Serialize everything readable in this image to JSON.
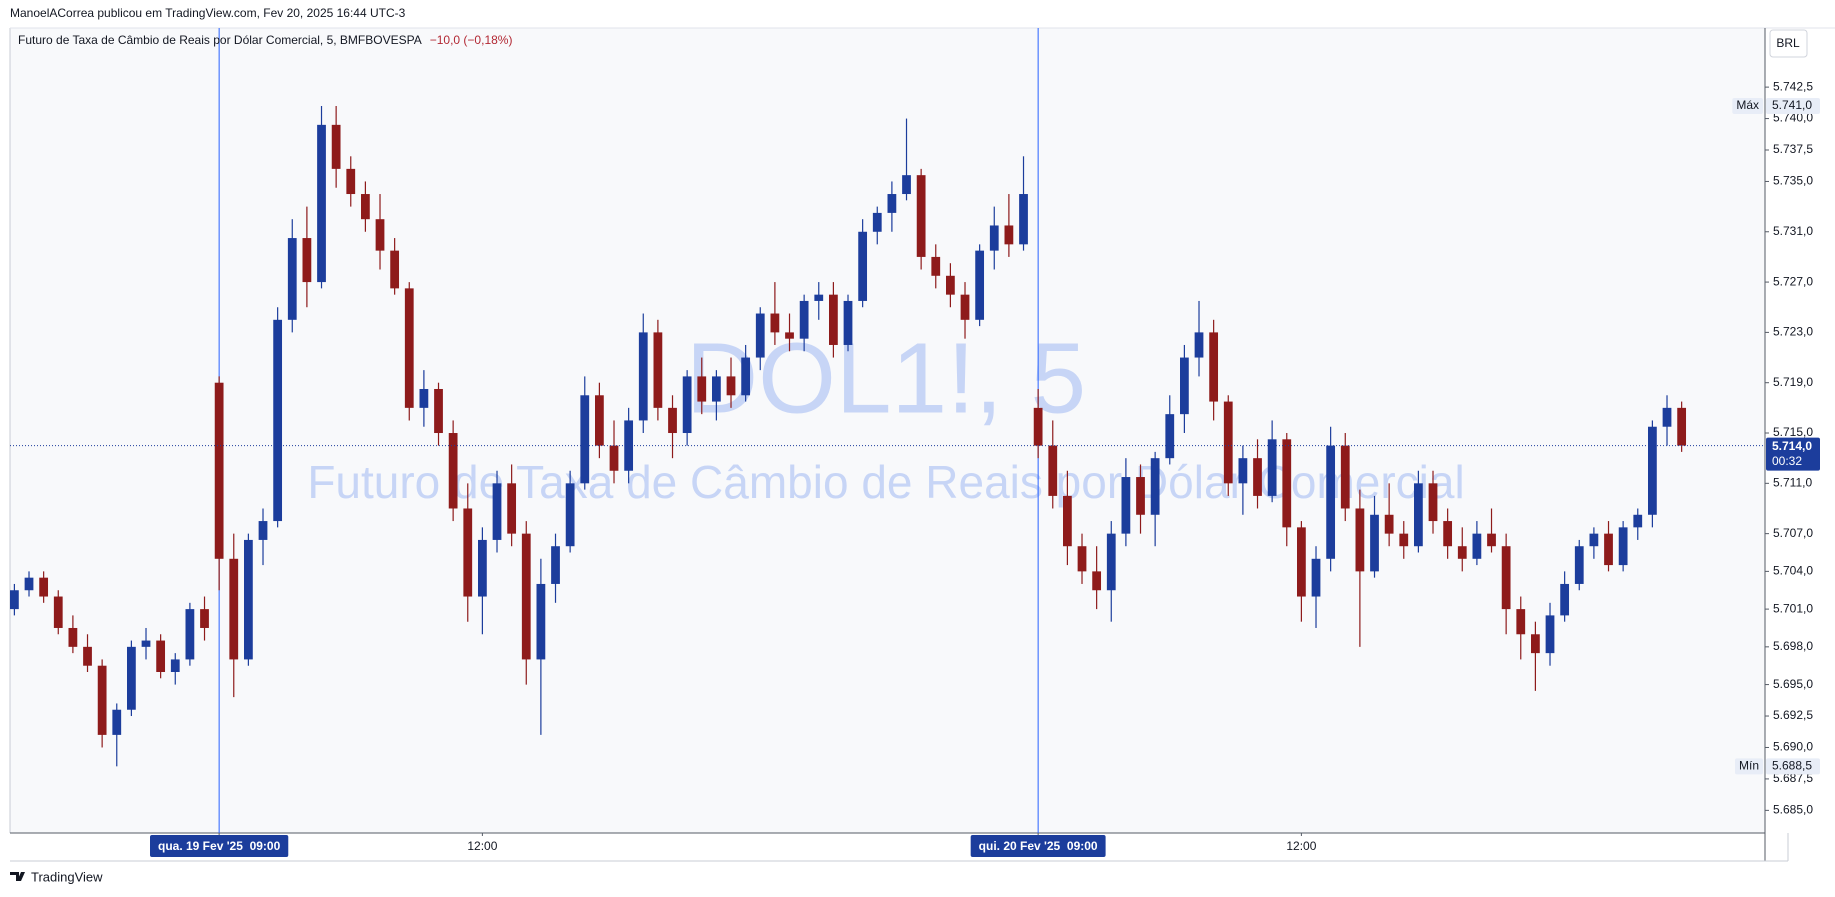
{
  "header": {
    "published": "ManoelACorrea publicou em TradingView.com, Fev 20, 2025 16:44 UTC-3"
  },
  "legend": {
    "name": "Futuro de Taxa de Câmbio de Reais por Dólar Comercial, 5, BMFBOVESPA",
    "change": "−10,0 (−0,18%)"
  },
  "watermark": {
    "symbol": "DOL1!, 5",
    "name": "Futuro de Taxa de Câmbio de Reais por Dólar Comercial"
  },
  "currency": "BRL",
  "footer": {
    "brand": "TradingView"
  },
  "chart_data": {
    "type": "candlestick",
    "up_color": "#1c3d9c",
    "down_color": "#8e1b1b",
    "grid": false,
    "ylim": [
      5683.2,
      5747.2
    ],
    "yticks": [
      {
        "value": 5742.5,
        "label": "5.742,5"
      },
      {
        "value": 5740,
        "label": "5.740,0"
      },
      {
        "value": 5737.5,
        "label": "5.737,5"
      },
      {
        "value": 5735,
        "label": "5.735,0"
      },
      {
        "value": 5731,
        "label": "5.731,0"
      },
      {
        "value": 5727,
        "label": "5.727,0"
      },
      {
        "value": 5723,
        "label": "5.723,0"
      },
      {
        "value": 5719,
        "label": "5.719,0"
      },
      {
        "value": 5715,
        "label": "5.715,0"
      },
      {
        "value": 5711,
        "label": "5.711,0"
      },
      {
        "value": 5707,
        "label": "5.707,0"
      },
      {
        "value": 5704,
        "label": "5.704,0"
      },
      {
        "value": 5701,
        "label": "5.701,0"
      },
      {
        "value": 5698,
        "label": "5.698,0"
      },
      {
        "value": 5695,
        "label": "5.695,0"
      },
      {
        "value": 5692.5,
        "label": "5.692,5"
      },
      {
        "value": 5690,
        "label": "5.690,0"
      },
      {
        "value": 5687.5,
        "label": "5.687,5"
      },
      {
        "value": 5685,
        "label": "5.685,0"
      }
    ],
    "xlim": [
      -0.3,
      119.7
    ],
    "xticks": [
      {
        "value": 14,
        "label": "qua. 19 Fev '25  09:00"
      },
      {
        "value": 32,
        "label": "12:00"
      },
      {
        "value": 70,
        "label": "qui. 20 Fev '25  09:00"
      },
      {
        "value": 88,
        "label": "12:00"
      }
    ],
    "session_breaks": [
      14,
      70
    ],
    "last": {
      "value": 5714,
      "label": "5.714,0"
    },
    "countdown": "00:32",
    "max": {
      "value": 5741,
      "label": "5.741,0"
    },
    "max_label": "Máx",
    "min": {
      "value": 5688.5,
      "label": "5.688,5"
    },
    "min_label": "Mín",
    "candles": [
      [
        5701,
        5703,
        5700.5,
        5702.5
      ],
      [
        5702.5,
        5704,
        5702,
        5703.5
      ],
      [
        5703.5,
        5704,
        5701.5,
        5702
      ],
      [
        5702,
        5702.5,
        5699,
        5699.5
      ],
      [
        5699.5,
        5700.5,
        5697.5,
        5698
      ],
      [
        5698,
        5699,
        5696,
        5696.5
      ],
      [
        5696.5,
        5697,
        5690,
        5691
      ],
      [
        5691,
        5693.5,
        5688.5,
        5693
      ],
      [
        5693,
        5698.5,
        5692.5,
        5698
      ],
      [
        5698,
        5699.5,
        5697,
        5698.5
      ],
      [
        5698.5,
        5699,
        5695.5,
        5696
      ],
      [
        5696,
        5697.5,
        5695,
        5697
      ],
      [
        5697,
        5701.5,
        5696.5,
        5701
      ],
      [
        5701,
        5702,
        5698.5,
        5699.5
      ],
      [
        5719,
        5719.5,
        5702.5,
        5705
      ],
      [
        5705,
        5707,
        5694,
        5697
      ],
      [
        5697,
        5707,
        5696.5,
        5706.5
      ],
      [
        5706.5,
        5709,
        5704.5,
        5708
      ],
      [
        5708,
        5725,
        5707.5,
        5724
      ],
      [
        5724,
        5732,
        5723,
        5730.5
      ],
      [
        5730.5,
        5733,
        5725,
        5727
      ],
      [
        5727,
        5741,
        5726.5,
        5739.5
      ],
      [
        5739.5,
        5741,
        5734.5,
        5736
      ],
      [
        5736,
        5737,
        5733,
        5734
      ],
      [
        5734,
        5735,
        5731,
        5732
      ],
      [
        5732,
        5734,
        5728,
        5729.5
      ],
      [
        5729.5,
        5730.5,
        5726,
        5726.5
      ],
      [
        5726.5,
        5727,
        5716,
        5717
      ],
      [
        5717,
        5720,
        5715.5,
        5718.5
      ],
      [
        5718.5,
        5719,
        5714,
        5715
      ],
      [
        5715,
        5716,
        5708,
        5709
      ],
      [
        5709,
        5711,
        5700,
        5702
      ],
      [
        5702,
        5707.5,
        5699,
        5706.5
      ],
      [
        5706.5,
        5712,
        5705.5,
        5711
      ],
      [
        5711,
        5712.5,
        5706,
        5707
      ],
      [
        5707,
        5708,
        5695,
        5697
      ],
      [
        5697,
        5705,
        5691,
        5703
      ],
      [
        5703,
        5707,
        5701.5,
        5706
      ],
      [
        5706,
        5712,
        5705.5,
        5711
      ],
      [
        5711,
        5719.5,
        5710.5,
        5718
      ],
      [
        5718,
        5719,
        5713,
        5714
      ],
      [
        5714,
        5716,
        5711,
        5712
      ],
      [
        5712,
        5717,
        5711,
        5716
      ],
      [
        5716,
        5724.5,
        5715,
        5723
      ],
      [
        5723,
        5724,
        5716,
        5717
      ],
      [
        5717,
        5718,
        5713,
        5715
      ],
      [
        5715,
        5720,
        5714,
        5719.5
      ],
      [
        5719.5,
        5721,
        5716.5,
        5717.5
      ],
      [
        5717.5,
        5720,
        5716,
        5719.5
      ],
      [
        5719.5,
        5721,
        5717,
        5718
      ],
      [
        5718,
        5722,
        5717.5,
        5721
      ],
      [
        5721,
        5725,
        5720,
        5724.5
      ],
      [
        5724.5,
        5727,
        5722,
        5723
      ],
      [
        5723,
        5724.5,
        5721.5,
        5722.5
      ],
      [
        5722.5,
        5726,
        5721.5,
        5725.5
      ],
      [
        5725.5,
        5727,
        5724,
        5726
      ],
      [
        5726,
        5727,
        5721,
        5722
      ],
      [
        5722,
        5726,
        5721.5,
        5725.5
      ],
      [
        5725.5,
        5732,
        5725,
        5731
      ],
      [
        5731,
        5733,
        5730,
        5732.5
      ],
      [
        5732.5,
        5735,
        5731,
        5734
      ],
      [
        5734,
        5740,
        5733.5,
        5735.5
      ],
      [
        5735.5,
        5736,
        5728,
        5729
      ],
      [
        5729,
        5730,
        5726.5,
        5727.5
      ],
      [
        5727.5,
        5728.5,
        5725,
        5726
      ],
      [
        5726,
        5727,
        5722.5,
        5724
      ],
      [
        5724,
        5730,
        5723.5,
        5729.5
      ],
      [
        5729.5,
        5733,
        5728,
        5731.5
      ],
      [
        5731.5,
        5734,
        5729,
        5730
      ],
      [
        5730,
        5737,
        5729.5,
        5734
      ],
      [
        5717,
        5718.5,
        5713,
        5714
      ],
      [
        5714,
        5716,
        5709,
        5710
      ],
      [
        5710,
        5712,
        5704.5,
        5706
      ],
      [
        5706,
        5707,
        5703,
        5704
      ],
      [
        5704,
        5706,
        5701,
        5702.5
      ],
      [
        5702.5,
        5708,
        5700,
        5707
      ],
      [
        5707,
        5713,
        5706,
        5711.5
      ],
      [
        5711.5,
        5712.5,
        5707,
        5708.5
      ],
      [
        5708.5,
        5713.5,
        5706,
        5713
      ],
      [
        5713,
        5718,
        5712.5,
        5716.5
      ],
      [
        5716.5,
        5722,
        5715,
        5721
      ],
      [
        5721,
        5725.5,
        5719.5,
        5723
      ],
      [
        5723,
        5724,
        5716,
        5717.5
      ],
      [
        5717.5,
        5718,
        5710,
        5711
      ],
      [
        5711,
        5714,
        5708.5,
        5713
      ],
      [
        5713,
        5714.5,
        5709,
        5710
      ],
      [
        5710,
        5716,
        5709.5,
        5714.5
      ],
      [
        5714.5,
        5715,
        5706,
        5707.5
      ],
      [
        5707.5,
        5708,
        5700,
        5702
      ],
      [
        5702,
        5706,
        5699.5,
        5705
      ],
      [
        5705,
        5715.5,
        5704,
        5714
      ],
      [
        5714,
        5715,
        5708,
        5709
      ],
      [
        5709,
        5710.5,
        5698,
        5704
      ],
      [
        5704,
        5710,
        5703.5,
        5708.5
      ],
      [
        5708.5,
        5711,
        5706,
        5707
      ],
      [
        5707,
        5708,
        5705,
        5706
      ],
      [
        5706,
        5712,
        5705.5,
        5711
      ],
      [
        5711,
        5712,
        5707,
        5708
      ],
      [
        5708,
        5709,
        5705,
        5706
      ],
      [
        5706,
        5707.5,
        5704,
        5705
      ],
      [
        5705,
        5708,
        5704.5,
        5707
      ],
      [
        5707,
        5709,
        5705.5,
        5706
      ],
      [
        5706,
        5707,
        5699,
        5701
      ],
      [
        5701,
        5702,
        5697,
        5699
      ],
      [
        5699,
        5700,
        5694.5,
        5697.5
      ],
      [
        5697.5,
        5701.5,
        5696.5,
        5700.5
      ],
      [
        5700.5,
        5704,
        5700,
        5703
      ],
      [
        5703,
        5706.5,
        5702.5,
        5706
      ],
      [
        5706,
        5707.5,
        5705,
        5707
      ],
      [
        5707,
        5708,
        5704,
        5704.5
      ],
      [
        5704.5,
        5708,
        5704,
        5707.5
      ],
      [
        5707.5,
        5709,
        5706.5,
        5708.5
      ],
      [
        5708.5,
        5716,
        5707.5,
        5715.5
      ],
      [
        5715.5,
        5718,
        5714,
        5717
      ],
      [
        5717,
        5717.5,
        5713.5,
        5714
      ]
    ]
  }
}
